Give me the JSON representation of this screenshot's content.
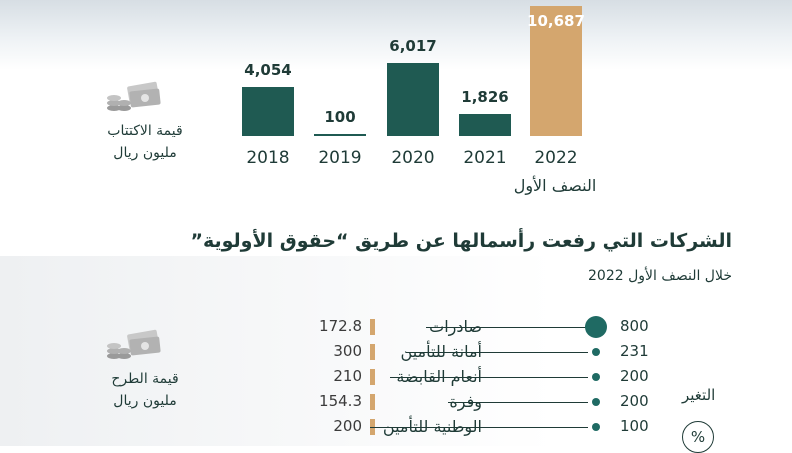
{
  "colors": {
    "teal": "#1f5a52",
    "accent": "#d4a66e",
    "dot": "#1f6a63"
  },
  "chart_data": [
    {
      "type": "bar",
      "categories": [
        "2018",
        "2019",
        "2020",
        "2021",
        "2022"
      ],
      "values": [
        4054,
        100,
        6017,
        1826,
        10687
      ],
      "value_labels": [
        "4,054",
        "100",
        "6,017",
        "1,826",
        "10,687"
      ],
      "highlight_index": 4,
      "highlight_note": "النصف الأول",
      "side_label": [
        "قيمة الاكتتاب",
        "مليون ريال"
      ],
      "ylim": [
        0,
        10687
      ]
    },
    {
      "type": "bar",
      "orientation": "horizontal",
      "title": "الشركات التي رفعت رأسمالها عن طريق “حقوق الأولوية”",
      "subtitle": "خلال النصف الأول 2022",
      "side_label": [
        "قيمة الطرح",
        "مليون ريال"
      ],
      "change_header": "التغير",
      "change_unit": "%",
      "categories": [
        "صادرات",
        "أمانة للتأمين",
        "أنعام القابضة",
        "وفرة",
        "الوطنية للتأمين"
      ],
      "values": [
        "172.8",
        "300",
        "210",
        "154.3",
        "200"
      ],
      "change_pct": [
        "800",
        "231",
        "200",
        "200",
        "100"
      ]
    }
  ]
}
